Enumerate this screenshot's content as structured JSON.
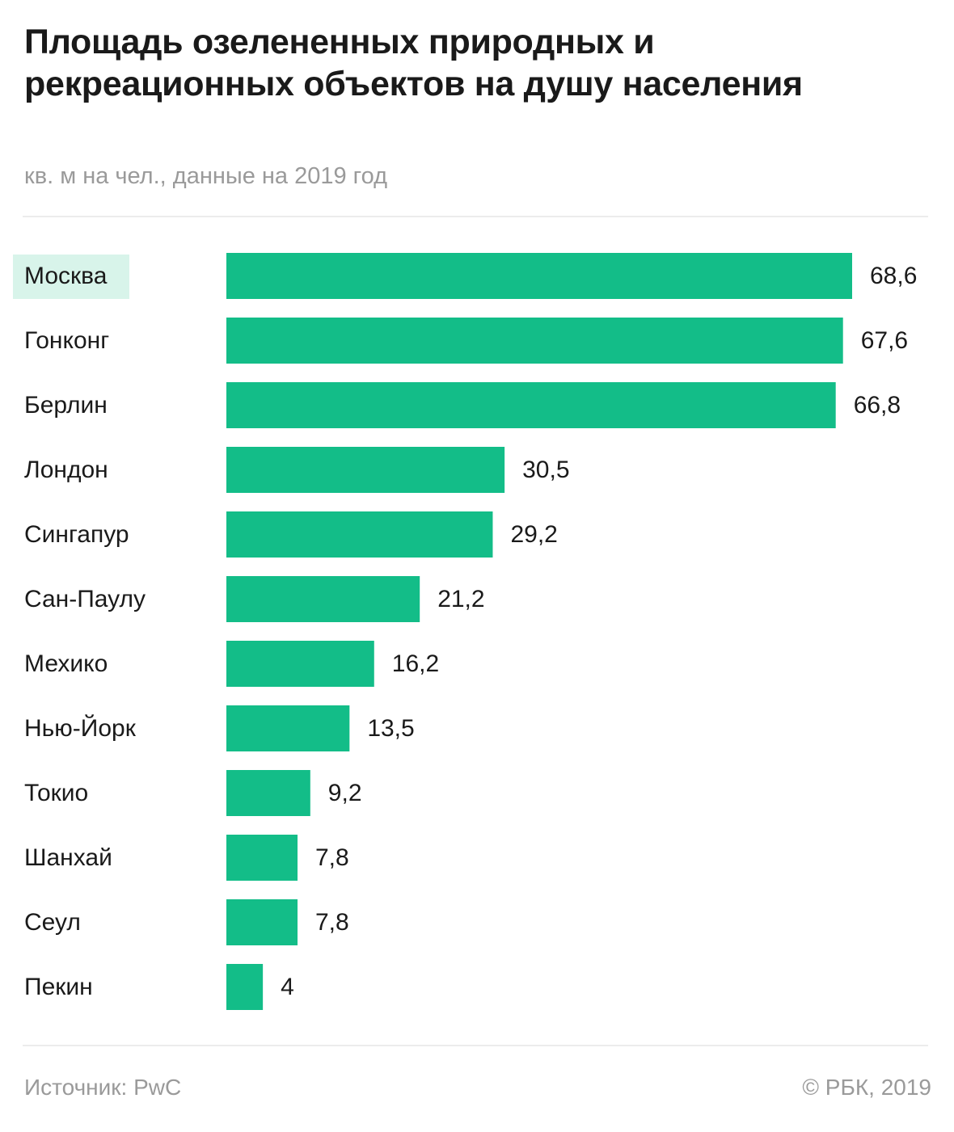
{
  "header": {
    "title": "Площадь озелененных природных и рекреационных объектов на душу населения",
    "subtitle": "кв. м на чел., данные на 2019 год"
  },
  "footer": {
    "source": "Источник: PwC",
    "copyright": "© РБК, 2019"
  },
  "colors": {
    "bar": "#13bd88",
    "highlight": "#d8f4ea",
    "text": "#1a1a1a",
    "muted": "#9a9a9a"
  },
  "chart_data": {
    "type": "bar",
    "orientation": "horizontal",
    "title": "Площадь озелененных природных и рекреационных объектов на душу населения",
    "subtitle": "кв. м на чел., данные на 2019 год",
    "categories": [
      "Москва",
      "Гонконг",
      "Берлин",
      "Лондон",
      "Сингапур",
      "Сан-Паулу",
      "Мехико",
      "Нью-Йорк",
      "Токио",
      "Шанхай",
      "Сеул",
      "Пекин"
    ],
    "values": [
      68.6,
      67.6,
      66.8,
      30.5,
      29.2,
      21.2,
      16.2,
      13.5,
      9.2,
      7.8,
      7.8,
      4
    ],
    "value_labels": [
      "68,6",
      "67,6",
      "66,8",
      "30,5",
      "29,2",
      "21,2",
      "16,2",
      "13,5",
      "9,2",
      "7,8",
      "7,8",
      "4"
    ],
    "highlighted_category": "Москва",
    "xlim": [
      0,
      68.6
    ],
    "grid": false,
    "legend": "none"
  }
}
